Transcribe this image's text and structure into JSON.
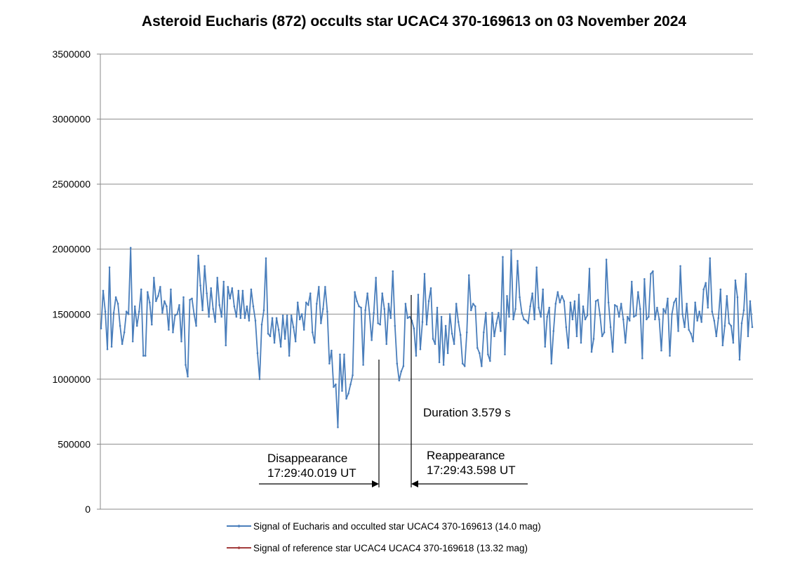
{
  "chart_data": {
    "type": "line",
    "title": "Asteroid Eucharis (872) occults star UCAC4 370-169613 on 03 November 2024",
    "xlabel": "",
    "ylabel": "",
    "ylim": [
      0,
      3500000
    ],
    "yticks": [
      "0",
      "500000",
      "1000000",
      "1500000",
      "2000000",
      "2500000",
      "3000000",
      "3500000"
    ],
    "ytick_values": [
      0,
      500000,
      1000000,
      1500000,
      2000000,
      2500000,
      3000000,
      3500000
    ],
    "grid": "horizontal",
    "legend_position": "bottom",
    "series": [
      {
        "name": "Signal of Eucharis and occulted star UCAC4 370-169613 (14.0 mag)",
        "color": "#4a7ebb",
        "values": [
          1390000,
          1680000,
          1520000,
          1230000,
          1860000,
          1250000,
          1510000,
          1630000,
          1580000,
          1410000,
          1270000,
          1360000,
          1520000,
          1500000,
          2010000,
          1290000,
          1560000,
          1410000,
          1520000,
          1690000,
          1180000,
          1180000,
          1670000,
          1590000,
          1420000,
          1780000,
          1600000,
          1640000,
          1710000,
          1510000,
          1600000,
          1560000,
          1380000,
          1690000,
          1360000,
          1490000,
          1500000,
          1570000,
          1290000,
          1630000,
          1110000,
          1020000,
          1610000,
          1620000,
          1500000,
          1410000,
          1950000,
          1720000,
          1530000,
          1870000,
          1660000,
          1480000,
          1700000,
          1540000,
          1440000,
          1780000,
          1570000,
          1480000,
          1750000,
          1260000,
          1710000,
          1620000,
          1700000,
          1560000,
          1480000,
          1680000,
          1470000,
          1680000,
          1470000,
          1560000,
          1450000,
          1690000,
          1560000,
          1450000,
          1200000,
          1000000,
          1420000,
          1530000,
          1930000,
          1350000,
          1330000,
          1470000,
          1280000,
          1470000,
          1380000,
          1250000,
          1490000,
          1310000,
          1490000,
          1180000,
          1490000,
          1400000,
          1290000,
          1590000,
          1460000,
          1500000,
          1380000,
          1590000,
          1570000,
          1660000,
          1360000,
          1280000,
          1580000,
          1710000,
          1430000,
          1540000,
          1710000,
          1520000,
          1120000,
          1220000,
          940000,
          960000,
          630000,
          1190000,
          910000,
          1190000,
          850000,
          890000,
          960000,
          1030000,
          1670000,
          1600000,
          1560000,
          1550000,
          1110000,
          1530000,
          1660000,
          1500000,
          1300000,
          1510000,
          1780000,
          1430000,
          1420000,
          1660000,
          1540000,
          1270000,
          1580000,
          1470000,
          1830000,
          1410000,
          1120000,
          990000,
          1060000,
          1100000,
          1580000,
          1470000,
          1480000,
          1450000,
          1390000,
          1180000,
          1650000,
          1230000,
          1440000,
          1810000,
          1420000,
          1600000,
          1700000,
          1310000,
          1270000,
          1550000,
          1130000,
          1480000,
          1110000,
          1410000,
          1200000,
          1500000,
          1350000,
          1270000,
          1580000,
          1440000,
          1340000,
          1120000,
          1100000,
          1360000,
          1800000,
          1530000,
          1580000,
          1560000,
          1240000,
          1200000,
          1100000,
          1360000,
          1510000,
          1190000,
          1140000,
          1510000,
          1330000,
          1430000,
          1510000,
          1370000,
          1940000,
          1190000,
          1640000,
          1480000,
          1990000,
          1460000,
          1540000,
          1910000,
          1630000,
          1510000,
          1460000,
          1450000,
          1430000,
          1560000,
          1660000,
          1460000,
          1860000,
          1550000,
          1480000,
          1690000,
          1250000,
          1480000,
          1550000,
          1120000,
          1370000,
          1580000,
          1670000,
          1590000,
          1640000,
          1600000,
          1400000,
          1240000,
          1590000,
          1460000,
          1600000,
          1330000,
          1650000,
          1280000,
          1560000,
          1460000,
          1490000,
          1850000,
          1210000,
          1310000,
          1600000,
          1610000,
          1490000,
          1330000,
          1360000,
          1920000,
          1590000,
          1400000,
          1210000,
          1570000,
          1560000,
          1480000,
          1580000,
          1460000,
          1280000,
          1480000,
          1450000,
          1750000,
          1480000,
          1490000,
          1670000,
          1540000,
          1160000,
          1770000,
          1460000,
          1480000,
          1810000,
          1830000,
          1460000,
          1550000,
          1460000,
          1220000,
          1540000,
          1510000,
          1620000,
          1180000,
          1500000,
          1590000,
          1620000,
          1370000,
          1870000,
          1500000,
          1400000,
          1580000,
          1380000,
          1350000,
          1290000,
          1590000,
          1450000,
          1520000,
          1440000,
          1690000,
          1740000,
          1550000,
          1930000,
          1520000,
          1450000,
          1330000,
          1470000,
          1690000,
          1260000,
          1410000,
          1640000,
          1430000,
          1410000,
          1280000,
          1760000,
          1630000,
          1150000,
          1430000,
          1530000,
          1810000,
          1330000,
          1600000,
          1400000
        ],
        "n_used": 0
      },
      {
        "name": "Signal of reference star UCAC4 UCAC4 370-169618 (13.32 mag)",
        "color": "#a33c3c",
        "values": []
      }
    ],
    "annotations": {
      "duration": "Duration 3.579 s",
      "disappearance_label": "Disappearance",
      "disappearance_time": "17:29:40.019 UT",
      "reappearance_label": "Reappearance",
      "reappearance_time": "17:29:43.598 UT"
    }
  }
}
